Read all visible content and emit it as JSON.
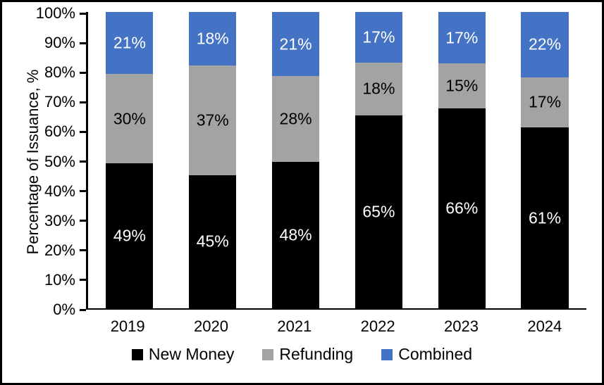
{
  "chart_data": {
    "type": "bar",
    "stacked": true,
    "title": "",
    "ylabel": "Percentage of Issuance, %",
    "xlabel": "",
    "ylim": [
      0,
      100
    ],
    "grid": false,
    "legend_position": "bottom",
    "data_label_suffix": "%",
    "categories": [
      "2019",
      "2020",
      "2021",
      "2022",
      "2023",
      "2024"
    ],
    "y_ticks": [
      "0%",
      "10%",
      "20%",
      "30%",
      "40%",
      "50%",
      "60%",
      "70%",
      "80%",
      "90%",
      "100%"
    ],
    "series": [
      {
        "name": "New Money",
        "color": "#000000",
        "label_color": "#ffffff",
        "values": [
          49,
          45,
          48,
          65,
          66,
          61
        ]
      },
      {
        "name": "Refunding",
        "color": "#a3a3a3",
        "label_color": "#000000",
        "values": [
          30,
          37,
          28,
          18,
          15,
          17
        ]
      },
      {
        "name": "Combined",
        "color": "#4472c4",
        "label_color": "#ffffff",
        "values": [
          21,
          18,
          21,
          17,
          17,
          22
        ]
      }
    ]
  }
}
